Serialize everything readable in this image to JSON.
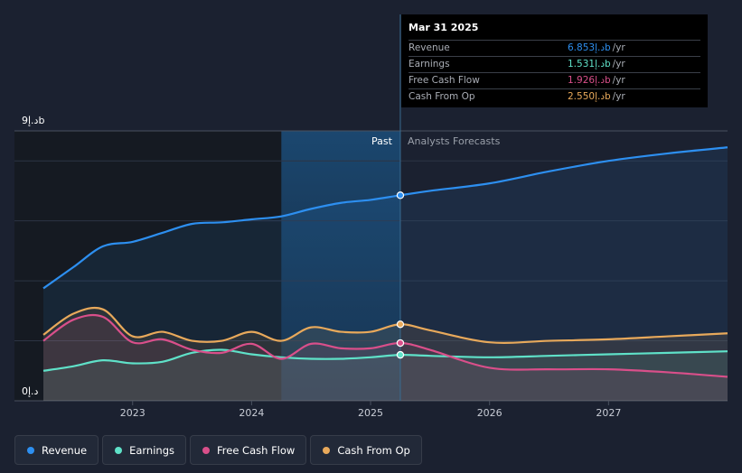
{
  "chart_data": {
    "type": "area",
    "currency_unit": "د.إb",
    "y_top_label": "9د.إb",
    "y_bottom_label": "0د.إ",
    "ylim": [
      0,
      9
    ],
    "xlim": [
      2022.25,
      2028.0
    ],
    "x_ticks": [
      {
        "label": "2023",
        "value": 2023.0
      },
      {
        "label": "2024",
        "value": 2024.0
      },
      {
        "label": "2025",
        "value": 2025.0
      },
      {
        "label": "2026",
        "value": 2026.0
      },
      {
        "label": "2027",
        "value": 2027.0
      }
    ],
    "divider_x": 2025.25,
    "past_band_start": 2024.25,
    "past_label": "Past",
    "forecast_label": "Analysts Forecasts",
    "series": [
      {
        "name": "Revenue",
        "color": "#2d8ff0",
        "x": [
          2022.25,
          2022.5,
          2022.75,
          2023.0,
          2023.25,
          2023.5,
          2023.75,
          2024.0,
          2024.25,
          2024.5,
          2024.75,
          2025.0,
          2025.25,
          2025.5,
          2026.0,
          2026.5,
          2027.0,
          2027.5,
          2028.0
        ],
        "y": [
          3.75,
          4.45,
          5.15,
          5.3,
          5.6,
          5.9,
          5.95,
          6.05,
          6.15,
          6.4,
          6.6,
          6.7,
          6.853,
          7.0,
          7.25,
          7.65,
          8.0,
          8.25,
          8.45
        ]
      },
      {
        "name": "Earnings",
        "color": "#5fe1c8",
        "x": [
          2022.25,
          2022.5,
          2022.75,
          2023.0,
          2023.25,
          2023.5,
          2023.75,
          2024.0,
          2024.25,
          2024.5,
          2024.75,
          2025.0,
          2025.25,
          2025.5,
          2026.0,
          2026.5,
          2027.0,
          2027.5,
          2028.0
        ],
        "y": [
          1.0,
          1.15,
          1.35,
          1.25,
          1.3,
          1.6,
          1.7,
          1.55,
          1.45,
          1.4,
          1.4,
          1.45,
          1.531,
          1.5,
          1.45,
          1.5,
          1.55,
          1.6,
          1.65
        ]
      },
      {
        "name": "Free Cash Flow",
        "color": "#d94f8a",
        "x": [
          2022.25,
          2022.5,
          2022.75,
          2023.0,
          2023.25,
          2023.5,
          2023.75,
          2024.0,
          2024.25,
          2024.5,
          2024.75,
          2025.0,
          2025.25,
          2025.5,
          2026.0,
          2026.5,
          2027.0,
          2027.5,
          2028.0
        ],
        "y": [
          2.0,
          2.7,
          2.8,
          1.95,
          2.05,
          1.7,
          1.6,
          1.9,
          1.4,
          1.9,
          1.75,
          1.75,
          1.926,
          1.7,
          1.1,
          1.05,
          1.05,
          0.95,
          0.8
        ]
      },
      {
        "name": "Cash From Op",
        "color": "#e8a95b",
        "x": [
          2022.25,
          2022.5,
          2022.75,
          2023.0,
          2023.25,
          2023.5,
          2023.75,
          2024.0,
          2024.25,
          2024.5,
          2024.75,
          2025.0,
          2025.25,
          2025.5,
          2026.0,
          2026.5,
          2027.0,
          2027.5,
          2028.0
        ],
        "y": [
          2.2,
          2.9,
          3.05,
          2.15,
          2.3,
          2.0,
          2.0,
          2.3,
          2.0,
          2.45,
          2.3,
          2.3,
          2.55,
          2.35,
          1.95,
          2.0,
          2.05,
          2.15,
          2.25
        ]
      }
    ]
  },
  "tooltip": {
    "date": "Mar 31 2025",
    "rows": [
      {
        "label": "Revenue",
        "value": "6.853د.إb",
        "unit": "/yr",
        "color": "#2d8ff0"
      },
      {
        "label": "Earnings",
        "value": "1.531د.إb",
        "unit": "/yr",
        "color": "#5fe1c8"
      },
      {
        "label": "Free Cash Flow",
        "value": "1.926د.إb",
        "unit": "/yr",
        "color": "#d94f8a"
      },
      {
        "label": "Cash From Op",
        "value": "2.550د.إb",
        "unit": "/yr",
        "color": "#e8a95b"
      }
    ]
  },
  "legend": [
    {
      "label": "Revenue",
      "color": "#2d8ff0"
    },
    {
      "label": "Earnings",
      "color": "#5fe1c8"
    },
    {
      "label": "Free Cash Flow",
      "color": "#d94f8a"
    },
    {
      "label": "Cash From Op",
      "color": "#e8a95b"
    }
  ]
}
